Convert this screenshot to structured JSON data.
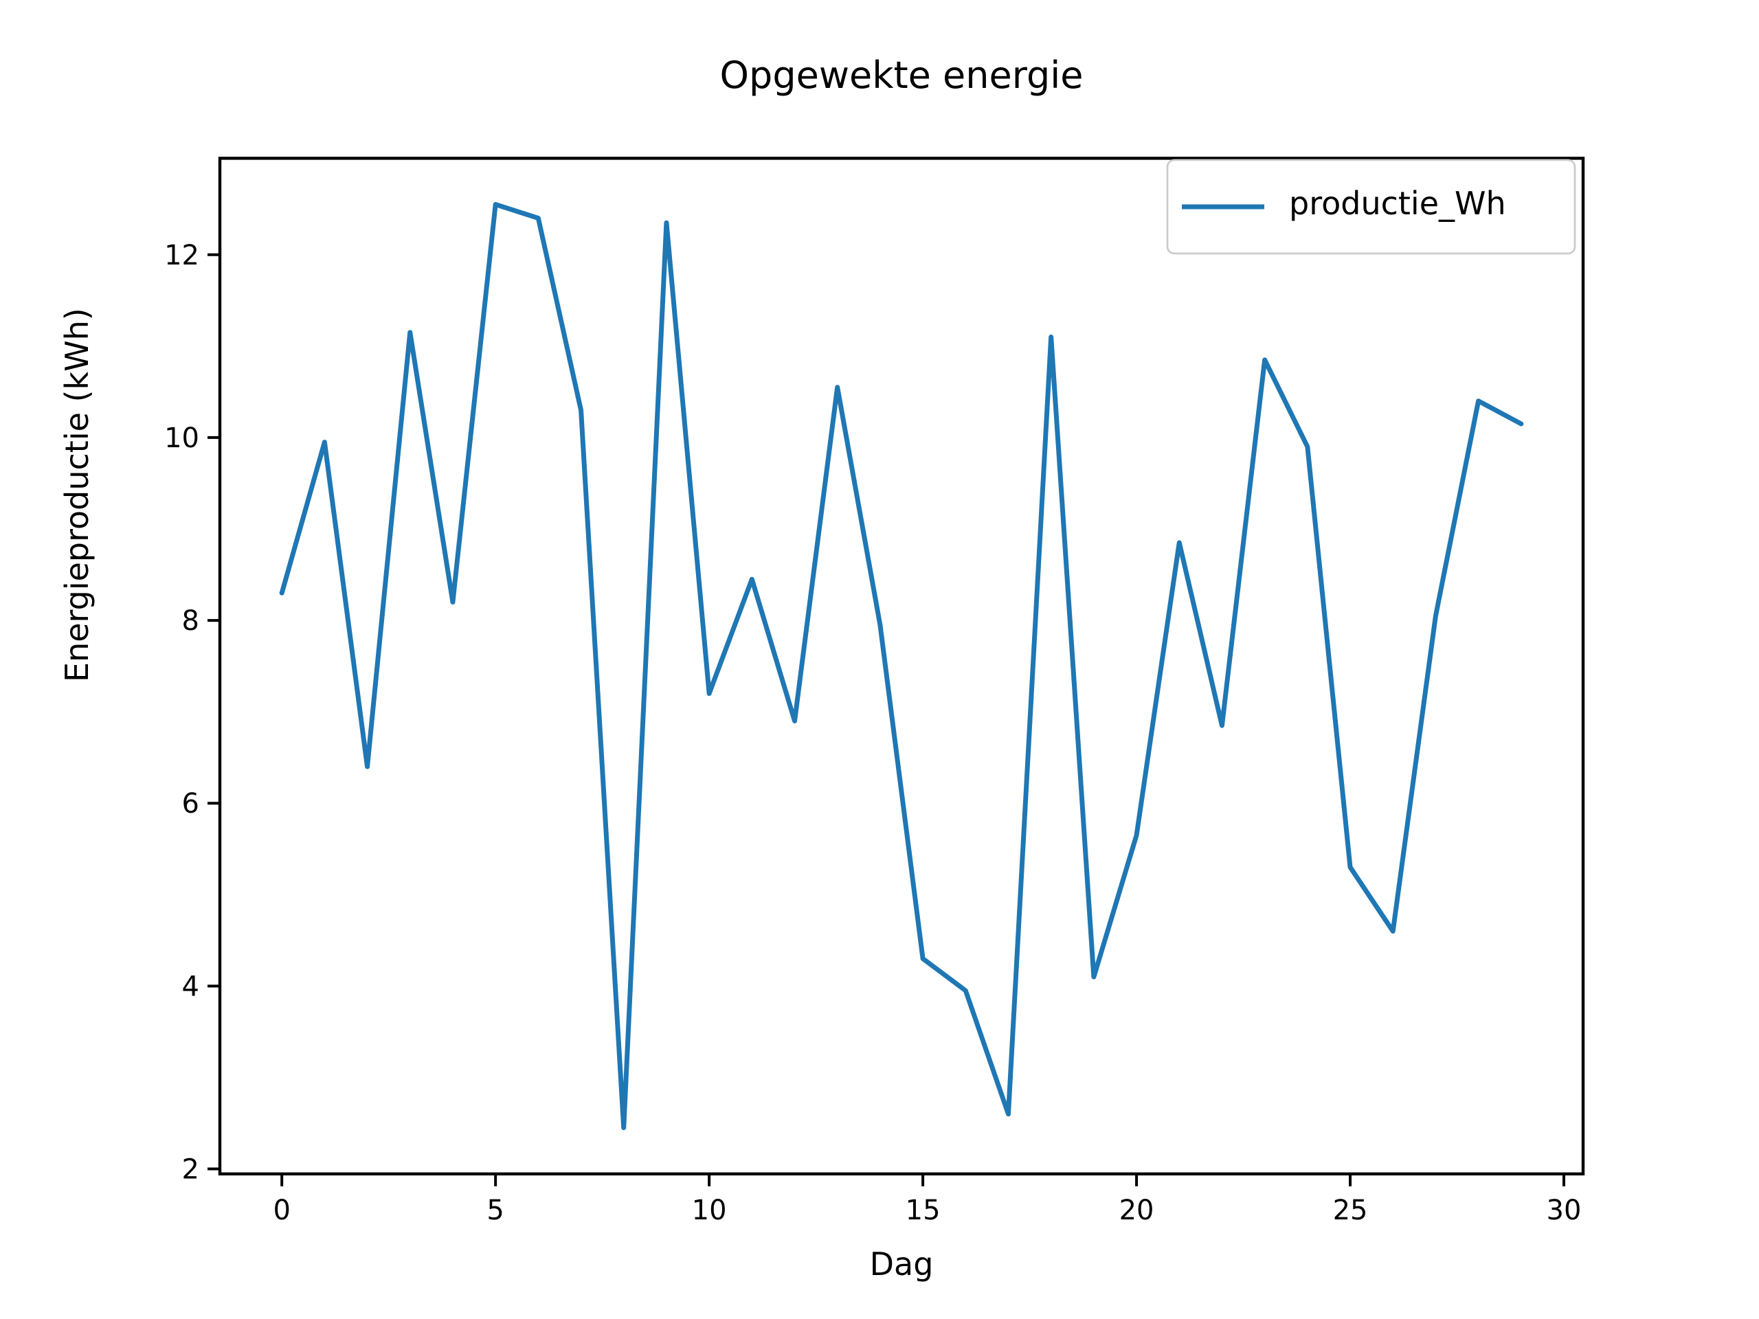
{
  "figure": {
    "title": "Opgewekte energie",
    "xlabel": "Dag",
    "ylabel": "Energieproductie (kWh)",
    "background_color": "#ffffff",
    "spine_color": "#000000",
    "text_color": "#000000"
  },
  "legend": {
    "label": "productie_Wh",
    "border_color": "#cccccc",
    "fill_color": "#ffffff"
  },
  "chart_data": {
    "type": "line",
    "title": "Opgewekte energie",
    "xlabel": "Dag",
    "ylabel": "Energieproductie (kWh)",
    "x": [
      0,
      1,
      2,
      3,
      4,
      5,
      6,
      7,
      8,
      9,
      10,
      11,
      12,
      13,
      14,
      15,
      16,
      17,
      18,
      19,
      20,
      21,
      22,
      23,
      24,
      25,
      26,
      27,
      28,
      29
    ],
    "series": [
      {
        "name": "productie_Wh",
        "color": "#1f77b4",
        "values": [
          8.3,
          9.95,
          6.4,
          11.15,
          8.2,
          12.55,
          12.4,
          10.3,
          2.45,
          12.35,
          7.2,
          8.45,
          6.9,
          10.55,
          7.95,
          4.3,
          3.95,
          2.6,
          11.1,
          4.1,
          5.65,
          8.85,
          6.85,
          10.85,
          9.9,
          5.3,
          4.6,
          8.05,
          10.4,
          10.15
        ]
      }
    ],
    "xticks": [
      0,
      5,
      10,
      15,
      20,
      25,
      30
    ],
    "yticks": [
      2,
      4,
      6,
      8,
      10,
      12
    ],
    "xlim": [
      -1.45,
      30.45
    ],
    "ylim": [
      1.945,
      13.055
    ],
    "grid": false,
    "legend_position": "upper right",
    "line_width": 3.5
  }
}
